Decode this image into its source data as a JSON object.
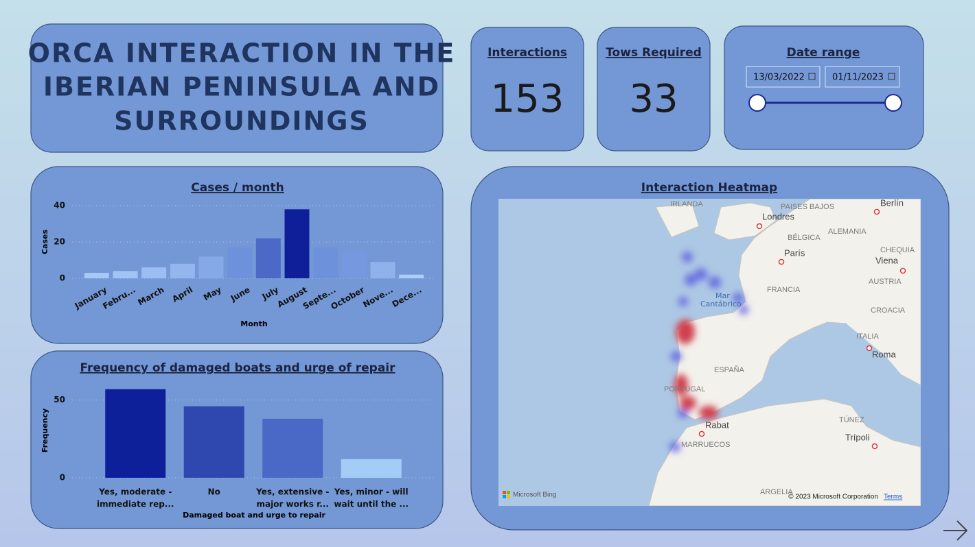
{
  "page": {
    "title_lines": [
      "ORCA INTERACTION IN THE",
      "IBERIAN PENINSULA AND",
      "SURROUNDINGS"
    ]
  },
  "cards": [
    {
      "label": "Interactions",
      "value": 153
    },
    {
      "label": "Tows Required",
      "value": 33
    }
  ],
  "date_range": {
    "label": "Date range",
    "start": "13/03/2022",
    "end": "01/11/2023"
  },
  "chart_data": [
    {
      "type": "bar",
      "title": "Cases / month",
      "x_label": "Month",
      "y_label": "Cases",
      "categories": [
        "January",
        "Febru...",
        "March",
        "April",
        "May",
        "June",
        "July",
        "August",
        "Septe...",
        "October",
        "Nove...",
        "Dece..."
      ],
      "values": [
        3,
        4,
        6,
        8,
        12,
        17,
        22,
        38,
        17,
        15,
        9,
        2
      ],
      "colors": [
        "#a7c9f6",
        "#a2c4f4",
        "#9bbdf1",
        "#94b6ee",
        "#85a8e6",
        "#6e91dc",
        "#4d69c7",
        "#0f1f99",
        "#6e91dc",
        "#7598df",
        "#90b2ec",
        "#abcdf8"
      ],
      "ylim": [
        0,
        40
      ],
      "yticks": [
        0,
        20,
        40
      ],
      "grid": true
    },
    {
      "type": "bar",
      "title": "Frequency of damaged boats and urge of repair",
      "x_label": "Damaged boat and urge to repair",
      "y_label": "Frequency",
      "categories": [
        [
          "Yes, moderate -",
          "immediate rep..."
        ],
        [
          "No",
          ""
        ],
        [
          "Yes, extensive -",
          "major works r..."
        ],
        [
          "Yes, minor - will",
          "wait until the ..."
        ]
      ],
      "values": [
        57,
        46,
        38,
        12
      ],
      "colors": [
        "#0e1f9a",
        "#2f48b0",
        "#4a68c6",
        "#a3cdf7"
      ],
      "ylim": [
        0,
        60
      ],
      "yticks": [
        0,
        50
      ],
      "grid": true
    }
  ],
  "map": {
    "title": "Interaction Heatmap",
    "labels": [
      "IRLANDA",
      "PAISES BAJOS",
      "Berlín",
      "Londres",
      "BÉLGICA",
      "ALEMANIA",
      "París",
      "CHEQUIA",
      "Viena",
      "FRANCIA",
      "AUSTRIA",
      "Mar",
      "Cantábrico",
      "CROACIA",
      "ITALIA",
      "Roma",
      "ESPAÑA",
      "PORTUGAL",
      "Rabat",
      "MARRUECOS",
      "TÚNEZ",
      "Trípoli",
      "ARGELIA"
    ],
    "attribution": "Microsoft Bing",
    "copyright": "© 2023 Microsoft Corporation",
    "terms": "Terms"
  }
}
